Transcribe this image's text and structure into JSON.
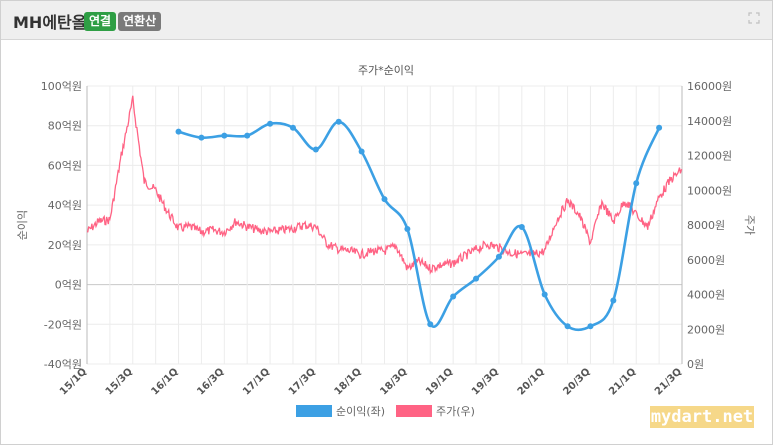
{
  "header": {
    "title": "MH에탄올",
    "badge_connected": "연결",
    "badge_annual": "연환산",
    "expand_icon": "expand-icon"
  },
  "colors": {
    "net_income": "#3ca0e4",
    "stock_price": "#ff6384",
    "badge_green": "#2e9e44",
    "badge_gray": "#7a7a7a"
  },
  "watermark": "mydart.net",
  "chart_data": {
    "type": "line",
    "title": "주가*순이익",
    "ylabel_left": "순이익",
    "ylabel_right": "주가",
    "ylim_left": [
      -40,
      100
    ],
    "ylim_right": [
      0,
      16000
    ],
    "yticks_left": [
      "100억원",
      "80억원",
      "60억원",
      "40억원",
      "20억원",
      "0억원",
      "-20억원",
      "-40억원"
    ],
    "yticks_right": [
      "16000원",
      "14000원",
      "12000원",
      "10000원",
      "8000원",
      "6000원",
      "4000원",
      "2000원",
      "0원"
    ],
    "categories": [
      "15/1Q",
      "15/2Q",
      "15/3Q",
      "15/4Q",
      "16/1Q",
      "16/2Q",
      "16/3Q",
      "16/4Q",
      "17/1Q",
      "17/2Q",
      "17/3Q",
      "17/4Q",
      "18/1Q",
      "18/2Q",
      "18/3Q",
      "18/4Q",
      "19/1Q",
      "19/2Q",
      "19/3Q",
      "19/4Q",
      "20/1Q",
      "20/2Q",
      "20/3Q",
      "20/4Q",
      "21/1Q",
      "21/2Q",
      "21/3Q"
    ],
    "xtick_labels": [
      "15/1Q",
      "15/3Q",
      "16/1Q",
      "16/3Q",
      "17/1Q",
      "17/3Q",
      "18/1Q",
      "18/3Q",
      "19/1Q",
      "19/3Q",
      "20/1Q",
      "20/3Q",
      "21/1Q",
      "21/3Q"
    ],
    "legend_position": "bottom",
    "series": [
      {
        "name": "순이익(좌)",
        "axis": "left",
        "points": [
          [
            "16/1Q",
            77
          ],
          [
            "16/2Q",
            74
          ],
          [
            "16/3Q",
            75
          ],
          [
            "16/4Q",
            75
          ],
          [
            "17/1Q",
            81
          ],
          [
            "17/2Q",
            79
          ],
          [
            "17/3Q",
            68
          ],
          [
            "17/4Q",
            82
          ],
          [
            "18/1Q",
            67
          ],
          [
            "18/2Q",
            43
          ],
          [
            "18/3Q",
            28
          ],
          [
            "18/4Q",
            -20
          ],
          [
            "19/1Q",
            -6
          ],
          [
            "19/2Q",
            3
          ],
          [
            "19/3Q",
            14
          ],
          [
            "19/4Q",
            29
          ],
          [
            "20/1Q",
            -5
          ],
          [
            "20/2Q",
            -21
          ],
          [
            "20/3Q",
            -21
          ],
          [
            "20/4Q",
            -8
          ],
          [
            "21/1Q",
            51
          ],
          [
            "21/2Q",
            79
          ]
        ]
      },
      {
        "name": "주가(우)",
        "axis": "right",
        "points": [
          [
            "15/1Q",
            7600
          ],
          [
            "15/1.5Q",
            8200
          ],
          [
            "15/2Q",
            8300
          ],
          [
            "15/2.5Q",
            12000
          ],
          [
            "15/3Q",
            15200
          ],
          [
            "15/3.5Q",
            10500
          ],
          [
            "15/4Q",
            10000
          ],
          [
            "15/4.5Q",
            8800
          ],
          [
            "16/1Q",
            7800
          ],
          [
            "16/1.5Q",
            7900
          ],
          [
            "16/2Q",
            7600
          ],
          [
            "16/2.5Q",
            7700
          ],
          [
            "16/3Q",
            7600
          ],
          [
            "16/3.5Q",
            8200
          ],
          [
            "16/4Q",
            7900
          ],
          [
            "16/4.5Q",
            7700
          ],
          [
            "17/1Q",
            7600
          ],
          [
            "17/1.5Q",
            7700
          ],
          [
            "17/2Q",
            7800
          ],
          [
            "17/2.5Q",
            8000
          ],
          [
            "17/3Q",
            7900
          ],
          [
            "17/3.5Q",
            6900
          ],
          [
            "17/4Q",
            6600
          ],
          [
            "17/4.5Q",
            6500
          ],
          [
            "18/1Q",
            6300
          ],
          [
            "18/1.5Q",
            6500
          ],
          [
            "18/2Q",
            6500
          ],
          [
            "18/2.5Q",
            6800
          ],
          [
            "18/3Q",
            5500
          ],
          [
            "18/3.5Q",
            5900
          ],
          [
            "18/4Q",
            5500
          ],
          [
            "18/4.5Q",
            5700
          ],
          [
            "19/1Q",
            5800
          ],
          [
            "19/1.5Q",
            6200
          ],
          [
            "19/2Q",
            6600
          ],
          [
            "19/2.5Q",
            6900
          ],
          [
            "19/3Q",
            6700
          ],
          [
            "19/3.5Q",
            6400
          ],
          [
            "19/4Q",
            6300
          ],
          [
            "19/4.5Q",
            6300
          ],
          [
            "20/1Q",
            6500
          ],
          [
            "20/1.5Q",
            8200
          ],
          [
            "20/2Q",
            9400
          ],
          [
            "20/2.5Q",
            8600
          ],
          [
            "20/3Q",
            7000
          ],
          [
            "20/3.5Q",
            9300
          ],
          [
            "20/4Q",
            8200
          ],
          [
            "20/4.5Q",
            9400
          ],
          [
            "21/1Q",
            8600
          ],
          [
            "21/1.5Q",
            7900
          ],
          [
            "21/2Q",
            9600
          ],
          [
            "21/2.5Q",
            10600
          ],
          [
            "21/3Q",
            11200
          ]
        ]
      }
    ]
  }
}
